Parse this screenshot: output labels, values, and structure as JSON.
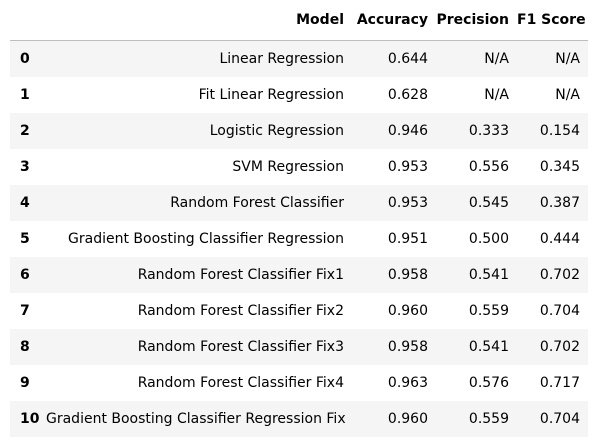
{
  "table": {
    "columns": [
      "",
      "Model",
      "Accuracy",
      "Precision",
      "F1 Score"
    ],
    "rows": [
      {
        "index": "0",
        "model": "Linear Regression",
        "accuracy": "0.644",
        "precision": "N/A",
        "f1": "N/A"
      },
      {
        "index": "1",
        "model": "Fit Linear Regression",
        "accuracy": "0.628",
        "precision": "N/A",
        "f1": "N/A"
      },
      {
        "index": "2",
        "model": "Logistic Regression",
        "accuracy": "0.946",
        "precision": "0.333",
        "f1": "0.154"
      },
      {
        "index": "3",
        "model": "SVM Regression",
        "accuracy": "0.953",
        "precision": "0.556",
        "f1": "0.345"
      },
      {
        "index": "4",
        "model": "Random Forest Classifier",
        "accuracy": "0.953",
        "precision": "0.545",
        "f1": "0.387"
      },
      {
        "index": "5",
        "model": "Gradient Boosting Classifier Regression",
        "accuracy": "0.951",
        "precision": "0.500",
        "f1": "0.444"
      },
      {
        "index": "6",
        "model": "Random Forest Classifier Fix1",
        "accuracy": "0.958",
        "precision": "0.541",
        "f1": "0.702"
      },
      {
        "index": "7",
        "model": "Random Forest Classifier Fix2",
        "accuracy": "0.960",
        "precision": "0.559",
        "f1": "0.704"
      },
      {
        "index": "8",
        "model": "Random Forest Classifier Fix3",
        "accuracy": "0.958",
        "precision": "0.541",
        "f1": "0.702"
      },
      {
        "index": "9",
        "model": "Random Forest Classifier Fix4",
        "accuracy": "0.963",
        "precision": "0.576",
        "f1": "0.717"
      },
      {
        "index": "10",
        "model": "Gradient Boosting Classifier Regression Fix",
        "accuracy": "0.960",
        "precision": "0.559",
        "f1": "0.704"
      }
    ]
  }
}
